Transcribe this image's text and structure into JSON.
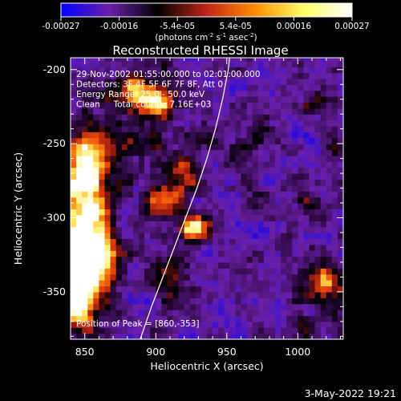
{
  "chart_data": {
    "type": "heatmap",
    "title": "Reconstructed RHESSI Image",
    "xlabel": "Heliocentric X (arcsec)",
    "ylabel": "Heliocentric Y (arcsec)",
    "xlim": [
      840,
      1032
    ],
    "ylim": [
      -382,
      -192
    ],
    "x_ticks": [
      850,
      900,
      950,
      1000
    ],
    "y_ticks": [
      -200,
      -250,
      -300,
      -350
    ],
    "colorbar": {
      "range": [
        -0.00027,
        0.00027
      ],
      "ticks": [
        "-0.00027",
        "-0.00016",
        "-5.4e-05",
        "5.4e-05",
        "0.00016",
        "0.00027"
      ],
      "label_main": "(photons cm",
      "label_sup1": "-2",
      "label_mid": " s",
      "label_sup2": "-1",
      "label_end": " asec",
      "label_sup3": "-2",
      "label_close": ")",
      "colors": [
        "#0000ff",
        "#6a1fa8",
        "#000000",
        "#c0241a",
        "#ff8c00",
        "#ffff66",
        "#ffffff"
      ]
    },
    "annotations": [
      "29-Nov-2002 01:55:00.000 to 02:01:00.000",
      "Detectors: 3F 4F 5F 6F 7F 8F, Att 0",
      "Energy Range: 25.0 - 50.0 keV",
      "Clean     Total counts: 7.16E+03"
    ],
    "peak_label": "Position of Peak = [860,-353]",
    "peak": [
      860,
      -353
    ],
    "limb": [
      [
        889,
        -382
      ],
      [
        897,
        -360
      ],
      [
        905,
        -340
      ],
      [
        913,
        -320
      ],
      [
        921,
        -300
      ],
      [
        929,
        -280
      ],
      [
        936,
        -260
      ],
      [
        942,
        -240
      ],
      [
        947,
        -220
      ],
      [
        951,
        -200
      ],
      [
        952,
        -192
      ]
    ],
    "blobs": [
      {
        "x": 848,
        "y": -315,
        "sx": 14,
        "sy": 40,
        "a": 1.25
      },
      {
        "x": 852,
        "y": -262,
        "sx": 9,
        "sy": 14,
        "a": 0.85
      },
      {
        "x": 845,
        "y": -345,
        "sx": 8,
        "sy": 14,
        "a": 1.0
      },
      {
        "x": 858,
        "y": -325,
        "sx": 10,
        "sy": 12,
        "a": 0.7
      },
      {
        "x": 888,
        "y": -216,
        "sx": 12,
        "sy": 10,
        "a": 0.95
      },
      {
        "x": 904,
        "y": -222,
        "sx": 8,
        "sy": 8,
        "a": 0.7
      },
      {
        "x": 878,
        "y": -252,
        "sx": 8,
        "sy": 8,
        "a": 0.45
      },
      {
        "x": 905,
        "y": -288,
        "sx": 10,
        "sy": 8,
        "a": 0.75
      },
      {
        "x": 928,
        "y": -306,
        "sx": 8,
        "sy": 6,
        "a": 1.0
      },
      {
        "x": 920,
        "y": -270,
        "sx": 10,
        "sy": 8,
        "a": 0.65
      },
      {
        "x": 930,
        "y": -245,
        "sx": 7,
        "sy": 6,
        "a": 0.5
      },
      {
        "x": 903,
        "y": -335,
        "sx": 10,
        "sy": 8,
        "a": 0.35
      },
      {
        "x": 920,
        "y": -350,
        "sx": 8,
        "sy": 7,
        "a": 0.3
      },
      {
        "x": 900,
        "y": -250,
        "sx": 6,
        "sy": 6,
        "a": 0.35
      },
      {
        "x": 1018,
        "y": -345,
        "sx": 9,
        "sy": 10,
        "a": 0.75
      },
      {
        "x": 975,
        "y": -240,
        "sx": 8,
        "sy": 7,
        "a": 0.3
      },
      {
        "x": 960,
        "y": -255,
        "sx": 7,
        "sy": 6,
        "a": 0.4
      },
      {
        "x": 1008,
        "y": -290,
        "sx": 6,
        "sy": 6,
        "a": 0.35
      },
      {
        "x": 1010,
        "y": -225,
        "sx": 7,
        "sy": 6,
        "a": 0.3
      },
      {
        "x": 1025,
        "y": -255,
        "sx": 5,
        "sy": 7,
        "a": 0.3
      }
    ]
  },
  "footer": {
    "timestamp": "3-May-2022 19:21"
  }
}
